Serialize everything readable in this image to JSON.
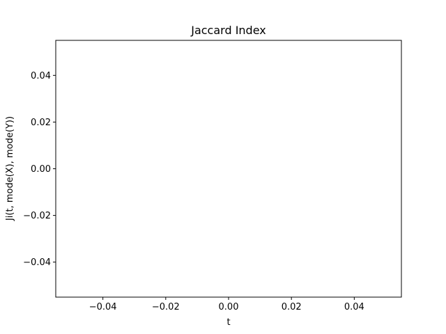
{
  "chart_data": {
    "type": "line",
    "title": "Jaccard Index",
    "xlabel": "t",
    "ylabel": "Ji(t, mode(X), mode(Y))",
    "xlim": [
      -0.055,
      0.055
    ],
    "ylim": [
      -0.055,
      0.055
    ],
    "xticks": [
      -0.04,
      -0.02,
      0.0,
      0.02,
      0.04
    ],
    "xtick_labels": [
      "−0.04",
      "−0.02",
      "0.00",
      "0.02",
      "0.04"
    ],
    "yticks": [
      0.04,
      0.02,
      0.0,
      -0.02,
      -0.04
    ],
    "ytick_labels": [
      "0.04",
      "0.02",
      "0.00",
      "−0.02",
      "−0.04"
    ],
    "series": [],
    "grid": false,
    "legend": "none"
  }
}
